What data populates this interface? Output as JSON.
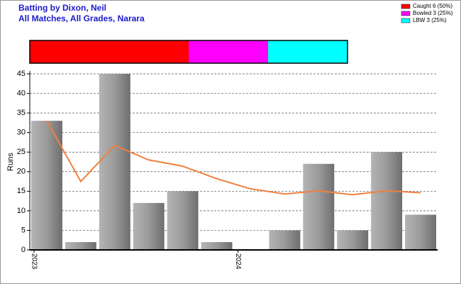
{
  "chart_data": [
    {
      "type": "stacked-bar",
      "series": [
        {
          "name": "Caught 6 (50%)",
          "color": "#ff0000",
          "values": [
            6
          ]
        },
        {
          "name": "Bowled 3 (25%)",
          "color": "#ff00ff",
          "values": [
            3
          ]
        },
        {
          "name": "LBW 3 (25%)",
          "color": "#00ffff",
          "values": [
            3
          ]
        }
      ]
    },
    {
      "type": "bar",
      "title": "Batting by Dixon, Neil",
      "subtitle": "All Matches, All Grades, Narara",
      "y_label": "Runs",
      "categories": [
        "2023",
        null,
        null,
        null,
        null,
        null,
        "2024",
        null,
        null,
        null,
        null,
        null
      ],
      "values": [
        33,
        2,
        45,
        12,
        15,
        2,
        0,
        5,
        22,
        5,
        25,
        9
      ],
      "line": {
        "color": "#f08040",
        "values": [
          33,
          17.5,
          26.7,
          23,
          21.4,
          18.2,
          15.6,
          14.3,
          15.1,
          14.1,
          15.1,
          14.6
        ]
      },
      "ylim": [
        0,
        45
      ],
      "yticks": [
        0,
        5,
        10,
        15,
        20,
        25,
        30,
        35,
        40,
        45
      ],
      "grid": true
    }
  ]
}
